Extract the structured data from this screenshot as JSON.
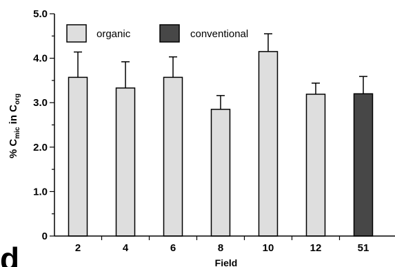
{
  "chart_data": {
    "type": "bar",
    "panel_label": "d",
    "xlabel": "Field",
    "ylabel": {
      "prefix": "% C",
      "sub1": "mic",
      "middle": " in C",
      "sub2": "org"
    },
    "ylim": [
      0,
      5.0
    ],
    "yticks": [
      "0",
      "1.0",
      "2.0",
      "3.0",
      "4.0",
      "5.0"
    ],
    "categories": [
      "2",
      "4",
      "6",
      "8",
      "10",
      "12",
      "51"
    ],
    "values": [
      3.57,
      3.33,
      3.57,
      2.85,
      4.15,
      3.19,
      3.2
    ],
    "errors": [
      0.57,
      0.59,
      0.46,
      0.31,
      0.4,
      0.25,
      0.39
    ],
    "groups": [
      "organic",
      "organic",
      "organic",
      "organic",
      "organic",
      "organic",
      "conventional"
    ],
    "legend": [
      {
        "label": "organic",
        "color": "#dedede"
      },
      {
        "label": "conventional",
        "color": "#474747"
      }
    ],
    "legend_position": "top-left",
    "grid": false
  }
}
